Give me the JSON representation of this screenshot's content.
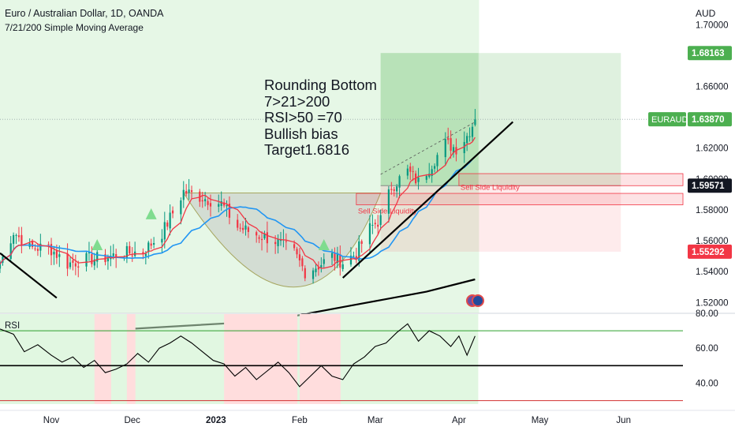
{
  "header": {
    "title": "Euro / Australian Dollar, 1D, OANDA",
    "indicator": "7/21/200 Simple Moving Average",
    "currency": "AUD"
  },
  "annotation": {
    "lines": [
      "Rounding Bottom",
      "7>21>200",
      "RSI>50 =70",
      "Bullish bias",
      "Target1.6816"
    ]
  },
  "colors": {
    "bull": "#089981",
    "bear": "#f23645",
    "sma7": "#f23645",
    "sma21": "#2196f3",
    "sma200": "#000000",
    "tag_green": "#4caf50",
    "tag_red": "#f23645"
  },
  "chart_data": [
    {
      "type": "candlestick",
      "ylim": [
        1.513,
        1.716
      ],
      "yticks": [
        "1.70000",
        "1.66000",
        "1.62000",
        "1.60000",
        "1.58000",
        "1.56000",
        "1.54000",
        "1.52000"
      ],
      "ytick_values": [
        1.7,
        1.66,
        1.62,
        1.6,
        1.58,
        1.56,
        1.54,
        1.52
      ],
      "xticks": [
        "Nov",
        "Dec",
        "2023",
        "Feb",
        "Mar",
        "Apr",
        "May",
        "Jun"
      ],
      "xtick_dates": [
        "2022-11-01",
        "2022-12-01",
        "2023-01-01",
        "2023-02-01",
        "2023-03-01",
        "2023-04-01",
        "2023-05-01",
        "2023-06-01"
      ],
      "xlim": [
        "2022-10-13",
        "2023-06-23"
      ],
      "price_tags": [
        {
          "label": "1.68163",
          "value": 1.68163,
          "color": "#4caf50"
        },
        {
          "label": "EURAUD",
          "value": 1.6387,
          "color": "#4caf50",
          "prefix": true
        },
        {
          "label": "1.63870",
          "value": 1.6387,
          "color": "#4caf50"
        },
        {
          "label": "1.59571",
          "value": 1.59571,
          "color": "#131722"
        },
        {
          "label": "1.55292",
          "value": 1.55292,
          "color": "#f23645"
        }
      ],
      "anchors": [
        [
          "2022-10-13",
          1.545
        ],
        [
          "2022-10-18",
          1.566
        ],
        [
          "2022-10-24",
          1.555
        ],
        [
          "2022-10-31",
          1.556
        ],
        [
          "2022-11-07",
          1.545
        ],
        [
          "2022-11-14",
          1.548
        ],
        [
          "2022-11-21",
          1.549
        ],
        [
          "2022-11-28",
          1.552
        ],
        [
          "2022-12-05",
          1.553
        ],
        [
          "2022-12-12",
          1.565
        ],
        [
          "2022-12-16",
          1.578
        ],
        [
          "2022-12-20",
          1.592
        ],
        [
          "2022-12-27",
          1.588
        ],
        [
          "2023-01-03",
          1.584
        ],
        [
          "2023-01-09",
          1.569
        ],
        [
          "2023-01-16",
          1.564
        ],
        [
          "2023-01-23",
          1.56
        ],
        [
          "2023-01-30",
          1.552
        ],
        [
          "2023-02-03",
          1.54
        ],
        [
          "2023-02-08",
          1.544
        ],
        [
          "2023-02-13",
          1.55
        ],
        [
          "2023-02-17",
          1.546
        ],
        [
          "2023-02-22",
          1.552
        ],
        [
          "2023-02-27",
          1.568
        ],
        [
          "2023-03-03",
          1.574
        ],
        [
          "2023-03-07",
          1.595
        ],
        [
          "2023-03-13",
          1.605
        ],
        [
          "2023-03-17",
          1.598
        ],
        [
          "2023-03-20",
          1.605
        ],
        [
          "2023-03-27",
          1.623
        ],
        [
          "2023-03-31",
          1.62
        ],
        [
          "2023-04-04",
          1.628
        ],
        [
          "2023-04-07",
          1.6387
        ]
      ],
      "sma200": [
        [
          "2022-12-01",
          1.503
        ],
        [
          "2023-01-20",
          1.508
        ],
        [
          "2023-02-20",
          1.518
        ],
        [
          "2023-03-20",
          1.527
        ],
        [
          "2023-04-07",
          1.535
        ]
      ],
      "trendlines": [
        {
          "from": [
            "2022-10-13",
            1.552
          ],
          "to": [
            "2022-11-03",
            1.523
          ],
          "color": "#000000"
        },
        {
          "from": [
            "2023-02-17",
            1.536
          ],
          "to": [
            "2023-04-21",
            1.637
          ],
          "color": "#000000"
        }
      ],
      "rounding_bottom": {
        "start": [
          "2022-12-20",
          1.591
        ],
        "bottom": [
          "2023-02-03",
          1.53
        ],
        "end": [
          "2023-03-03",
          1.591
        ]
      },
      "zones": [
        {
          "label": "Sell Side Liquidity",
          "from": "2023-04-01",
          "price_top": 1.6035,
          "price_bottom": 1.5957,
          "color": "#f23645"
        },
        {
          "label": "Sell Side Liquidity",
          "from": "2023-02-22",
          "price_top": 1.5907,
          "price_bottom": 1.5833,
          "color": "#f23645"
        }
      ],
      "long_position": {
        "from": "2023-03-03",
        "to": "2023-05-31",
        "entry": 1.59571,
        "target": 1.68163,
        "stop": 1.55292
      },
      "signals": [
        [
          "2022-11-18",
          1.557
        ],
        [
          "2022-12-08",
          1.577
        ],
        [
          "2023-02-10",
          1.557
        ]
      ]
    },
    {
      "type": "line",
      "title": "RSI",
      "ylim": [
        28,
        80
      ],
      "yticks": [
        "80.00",
        "60.00",
        "40.00"
      ],
      "ytick_values": [
        80,
        60,
        40
      ],
      "levels": [
        70,
        50,
        30
      ],
      "series": [
        {
          "values": [
            [
              "2022-10-13",
              71
            ],
            [
              "2022-10-18",
              68
            ],
            [
              "2022-10-22",
              58
            ],
            [
              "2022-10-27",
              62
            ],
            [
              "2022-11-01",
              56
            ],
            [
              "2022-11-05",
              52
            ],
            [
              "2022-11-09",
              55
            ],
            [
              "2022-11-13",
              49
            ],
            [
              "2022-11-17",
              53
            ],
            [
              "2022-11-21",
              46
            ],
            [
              "2022-11-25",
              48
            ],
            [
              "2022-11-29",
              51
            ],
            [
              "2022-12-03",
              57
            ],
            [
              "2022-12-07",
              52
            ],
            [
              "2022-12-11",
              60
            ],
            [
              "2022-12-15",
              63
            ],
            [
              "2022-12-19",
              67
            ],
            [
              "2022-12-23",
              63
            ],
            [
              "2022-12-27",
              58
            ],
            [
              "2022-12-31",
              53
            ],
            [
              "2023-01-04",
              51
            ],
            [
              "2023-01-08",
              44
            ],
            [
              "2023-01-12",
              49
            ],
            [
              "2023-01-16",
              42
            ],
            [
              "2023-01-20",
              47
            ],
            [
              "2023-01-24",
              52
            ],
            [
              "2023-01-28",
              46
            ],
            [
              "2023-02-01",
              38
            ],
            [
              "2023-02-05",
              44
            ],
            [
              "2023-02-09",
              50
            ],
            [
              "2023-02-13",
              44
            ],
            [
              "2023-02-17",
              42
            ],
            [
              "2023-02-21",
              51
            ],
            [
              "2023-02-25",
              55
            ],
            [
              "2023-03-01",
              61
            ],
            [
              "2023-03-05",
              63
            ],
            [
              "2023-03-09",
              69
            ],
            [
              "2023-03-13",
              74
            ],
            [
              "2023-03-17",
              64
            ],
            [
              "2023-03-21",
              70
            ],
            [
              "2023-03-25",
              67
            ],
            [
              "2023-03-29",
              61
            ],
            [
              "2023-04-01",
              67
            ],
            [
              "2023-04-04",
              56
            ],
            [
              "2023-04-07",
              67
            ]
          ]
        }
      ],
      "bands": [
        {
          "from": "2022-10-13",
          "to": "2023-04-07",
          "color": "#c8f0c8"
        },
        {
          "from": "2022-11-17",
          "to": "2022-11-22",
          "color": "#fdd"
        },
        {
          "from": "2022-11-29",
          "to": "2022-12-01",
          "color": "#fdd"
        },
        {
          "from": "2023-01-04",
          "to": "2023-01-30",
          "color": "#fdd"
        },
        {
          "from": "2023-02-01",
          "to": "2023-02-15",
          "color": "#fdd"
        }
      ]
    }
  ]
}
